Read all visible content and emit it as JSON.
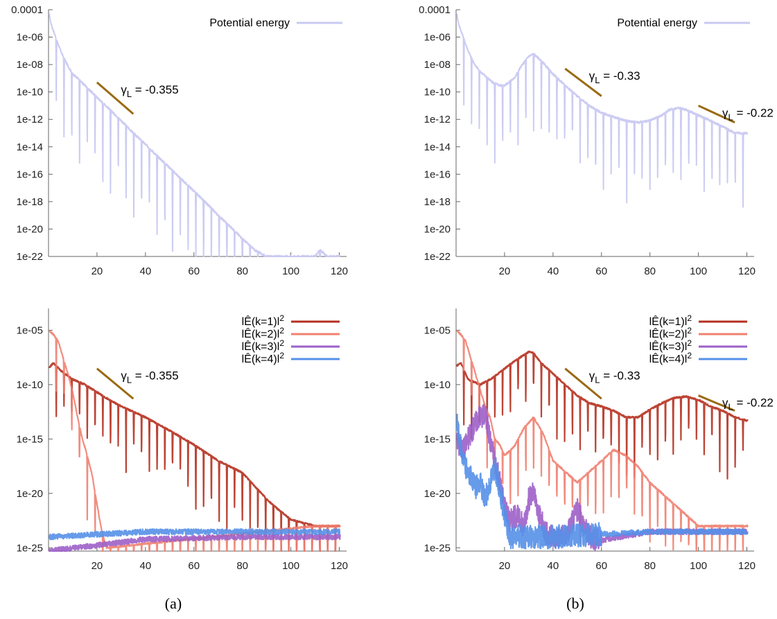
{
  "captions": [
    "(a)",
    "(b)"
  ],
  "chart_data": [
    {
      "id": "a-top",
      "type": "line",
      "scale_y": "log",
      "ylim": [
        1e-22,
        0.0001
      ],
      "xlim": [
        0,
        123
      ],
      "x_ticks": [
        20,
        40,
        60,
        80,
        100,
        120
      ],
      "y_ticks": [
        0.0001,
        1e-06,
        1e-08,
        1e-10,
        1e-12,
        1e-14,
        1e-16,
        1e-18,
        1e-20,
        1e-22
      ],
      "y_tick_labels": [
        "0.0001",
        "1e-06",
        "1e-08",
        "1e-10",
        "1e-12",
        "1e-14",
        "1e-16",
        "1e-18",
        "1e-20",
        "1e-22"
      ],
      "legend_position": "top-right",
      "series": [
        {
          "name": "Potential energy",
          "color": "#c9c9f2",
          "x": [
            0,
            1,
            2,
            3,
            4,
            5,
            6,
            8,
            10,
            12,
            15,
            20,
            25,
            30,
            35,
            40,
            45,
            50,
            55,
            60,
            65,
            70,
            75,
            80,
            85,
            90,
            95,
            98,
            100,
            105,
            108,
            110,
            112,
            115,
            118,
            120
          ],
          "y": [
            0.0001,
            1e-05,
            3e-06,
            1e-06,
            3e-07,
            1e-07,
            4e-08,
            8e-09,
            2e-09,
            1e-09,
            3e-10,
            4e-11,
            6e-12,
            8e-13,
            1e-13,
            1.5e-14,
            2e-15,
            3e-16,
            4e-17,
            6e-18,
            8e-19,
            1e-19,
            1.5e-20,
            2e-21,
            3e-22,
            1e-22,
            1e-22,
            1e-22,
            1e-22,
            1e-22,
            1e-22,
            1e-22,
            3e-22,
            1e-22,
            1e-22,
            1e-22
          ],
          "envelope_dips_to": 1e-22,
          "oscillation_period": 3.2
        }
      ],
      "annotations": [
        {
          "text": "γ",
          "sub": "L",
          "value": " = -0.355",
          "x1": 20,
          "y1": 5e-10,
          "x2": 35,
          "y2": 2.5e-12
        }
      ]
    },
    {
      "id": "b-top",
      "type": "line",
      "scale_y": "log",
      "ylim": [
        1e-22,
        0.0001
      ],
      "xlim": [
        0,
        123
      ],
      "x_ticks": [
        20,
        40,
        60,
        80,
        100,
        120
      ],
      "y_ticks": [
        0.0001,
        1e-06,
        1e-08,
        1e-10,
        1e-12,
        1e-14,
        1e-16,
        1e-18,
        1e-20,
        1e-22
      ],
      "y_tick_labels": [
        "0.0001",
        "1e-06",
        "1e-08",
        "1e-10",
        "1e-12",
        "1e-14",
        "1e-16",
        "1e-18",
        "1e-20",
        "1e-22"
      ],
      "legend_position": "top-right",
      "series": [
        {
          "name": "Potential energy",
          "color": "#c9c9f2",
          "x": [
            0,
            1,
            2,
            3,
            4,
            5,
            6,
            8,
            10,
            12,
            15,
            18,
            20,
            24,
            27,
            30,
            32,
            35,
            40,
            45,
            50,
            55,
            60,
            65,
            70,
            75,
            80,
            85,
            88,
            92,
            95,
            100,
            105,
            110,
            115,
            120
          ],
          "y": [
            0.0001,
            1e-05,
            3e-06,
            1e-06,
            3e-07,
            1e-07,
            4e-08,
            8e-09,
            3e-09,
            1.5e-09,
            5e-10,
            3e-10,
            3e-10,
            1e-09,
            8e-09,
            4e-08,
            6e-08,
            2e-08,
            2e-09,
            3e-10,
            5e-11,
            1e-11,
            3e-12,
            1.5e-12,
            8e-13,
            6e-13,
            8e-13,
            2e-12,
            5e-12,
            7e-12,
            5e-12,
            2e-12,
            8e-13,
            3e-13,
            1e-13,
            1e-13
          ],
          "dip_bottom": [
            1e-12,
            1e-14,
            1e-15,
            1e-16,
            1e-16,
            1e-17,
            1e-16,
            1e-15,
            1e-16,
            1e-16,
            1e-16
          ],
          "oscillation_period": 3.2
        }
      ],
      "annotations": [
        {
          "text": "γ",
          "sub": "L",
          "value": " = -0.33",
          "x1": 45,
          "y1": 5e-09,
          "x2": 60,
          "y2": 5e-11
        },
        {
          "text": "γ",
          "sub": "L",
          "value": " = -0.22",
          "x1": 100,
          "y1": 1e-11,
          "x2": 115,
          "y2": 6e-13
        }
      ]
    },
    {
      "id": "a-bottom",
      "type": "line",
      "scale_y": "log",
      "ylim": [
        5e-26,
        0.001
      ],
      "xlim": [
        0,
        123
      ],
      "x_ticks": [
        20,
        40,
        60,
        80,
        100,
        120
      ],
      "y_ticks": [
        1e-05,
        1e-10,
        1e-15,
        1e-20,
        1e-25
      ],
      "y_tick_labels": [
        "1e-05",
        "1e-10",
        "1e-15",
        "1e-20",
        "1e-25"
      ],
      "legend_position": "top-right",
      "series": [
        {
          "name": "|Ê(k=1)|²",
          "legend_text": "lÊ(k=1)l",
          "color": "#b5301f",
          "x": [
            0,
            2,
            5,
            10,
            15,
            20,
            25,
            30,
            40,
            50,
            60,
            70,
            80,
            90,
            95,
            100,
            110,
            120
          ],
          "y": [
            3e-09,
            1e-08,
            2e-09,
            3e-10,
            1e-10,
            2e-11,
            4e-12,
            1e-12,
            1e-13,
            6e-15,
            3e-16,
            1e-17,
            8e-19,
            3e-21,
            3e-22,
            4e-23,
            1e-23,
            1e-23
          ]
        },
        {
          "name": "|Ê(k=2)|²",
          "legend_text": "lÊ(k=2)l",
          "color": "#f08070",
          "x": [
            0,
            2,
            4,
            6,
            8,
            10,
            12,
            14,
            16,
            18,
            20,
            22,
            24,
            110,
            120
          ],
          "y": [
            1e-05,
            4e-06,
            1e-06,
            3e-08,
            1e-09,
            2e-11,
            1e-13,
            1e-15,
            3e-17,
            5e-19,
            1e-21,
            3e-24,
            1e-25,
            1e-23,
            1e-23
          ]
        },
        {
          "name": "|Ê(k=3)|²",
          "legend_text": "lÊ(k=3)l",
          "color": "#9d5fc8",
          "x": [
            0,
            40,
            80,
            120
          ],
          "y": [
            5e-26,
            6e-25,
            1e-24,
            1e-24
          ]
        },
        {
          "name": "|Ê(k=4)|²",
          "legend_text": "lÊ(k=4)l",
          "color": "#5590e8",
          "x": [
            0,
            40,
            80,
            120
          ],
          "y": [
            1e-24,
            3e-24,
            3e-24,
            3e-24
          ]
        }
      ],
      "annotations": [
        {
          "text": "γ",
          "sub": "L",
          "value": " = -0.355",
          "x1": 20,
          "y1": 3e-09,
          "x2": 35,
          "y2": 5e-12
        }
      ]
    },
    {
      "id": "b-bottom",
      "type": "line",
      "scale_y": "log",
      "ylim": [
        5e-26,
        0.001
      ],
      "xlim": [
        0,
        123
      ],
      "x_ticks": [
        20,
        40,
        60,
        80,
        100,
        120
      ],
      "y_ticks": [
        1e-05,
        1e-10,
        1e-15,
        1e-20,
        1e-25
      ],
      "y_tick_labels": [
        "1e-05",
        "1e-10",
        "1e-15",
        "1e-20",
        "1e-25"
      ],
      "legend_position": "top-right",
      "series": [
        {
          "name": "|Ê(k=1)|²",
          "legend_text": "lÊ(k=1)l",
          "color": "#b5301f",
          "x": [
            0,
            2,
            5,
            10,
            15,
            20,
            25,
            30,
            32,
            35,
            40,
            45,
            50,
            55,
            60,
            65,
            70,
            75,
            80,
            85,
            90,
            95,
            100,
            105,
            110,
            115,
            120
          ],
          "y": [
            5e-09,
            1e-08,
            3e-10,
            1e-10,
            4e-10,
            3e-09,
            2e-08,
            1e-07,
            8e-08,
            1e-08,
            1e-09,
            1e-10,
            1e-11,
            2e-12,
            1e-12,
            4e-13,
            1e-13,
            1e-13,
            5e-13,
            2e-12,
            6e-12,
            8e-12,
            4e-12,
            1e-12,
            4e-13,
            1e-13,
            5e-14
          ]
        },
        {
          "name": "|Ê(k=2)|²",
          "legend_text": "lÊ(k=2)l",
          "color": "#f08070",
          "x": [
            0,
            2,
            4,
            6,
            8,
            10,
            12,
            14,
            16,
            18,
            20,
            24,
            28,
            32,
            36,
            40,
            45,
            50,
            55,
            60,
            65,
            70,
            75,
            80,
            85,
            90,
            95,
            100,
            110,
            120
          ],
          "y": [
            1e-05,
            4e-06,
            1e-06,
            3e-08,
            1e-09,
            3e-11,
            1e-12,
            1e-13,
            1e-15,
            3e-16,
            3e-17,
            2e-16,
            1e-14,
            1e-13,
            3e-15,
            1e-17,
            1e-18,
            1e-19,
            1e-18,
            1e-17,
            1e-16,
            3e-17,
            3e-18,
            1e-19,
            1e-20,
            1e-21,
            1e-22,
            1e-23,
            1e-23,
            1e-23
          ]
        },
        {
          "name": "|Ê(k=3)|²",
          "legend_text": "lÊ(k=3)l",
          "color": "#9d5fc8",
          "x": [
            0,
            3,
            6,
            9,
            12,
            14,
            16,
            18,
            20,
            22,
            25,
            28,
            30,
            32,
            34,
            38,
            45,
            50,
            55,
            60,
            80,
            120
          ],
          "y": [
            1e-15,
            1e-16,
            3e-15,
            1e-13,
            2e-13,
            1e-15,
            1e-17,
            1e-19,
            1e-21,
            3e-23,
            1e-22,
            1e-23,
            3e-21,
            1e-20,
            1e-22,
            1e-24,
            1e-24,
            3e-22,
            1e-24,
            5e-25,
            3e-24,
            3e-24
          ]
        },
        {
          "name": "|Ê(k=4)|²",
          "legend_text": "lÊ(k=4)l",
          "color": "#5590e8",
          "x": [
            0,
            1,
            3,
            5,
            8,
            10,
            12,
            14,
            16,
            18,
            20,
            22,
            25,
            40,
            80,
            120
          ],
          "y": [
            1e-13,
            3e-15,
            1e-17,
            1e-18,
            3e-20,
            1e-19,
            3e-21,
            1e-19,
            3e-18,
            3e-20,
            1e-22,
            1e-24,
            1e-24,
            1e-24,
            3e-24,
            3e-24
          ]
        }
      ],
      "annotations": [
        {
          "text": "γ",
          "sub": "L",
          "value": " = -0.33",
          "x1": 45,
          "y1": 3e-09,
          "x2": 60,
          "y2": 5e-12
        },
        {
          "text": "γ",
          "sub": "L",
          "value": " = -0.22",
          "x1": 100,
          "y1": 1e-11,
          "x2": 115,
          "y2": 4e-13
        }
      ]
    }
  ]
}
